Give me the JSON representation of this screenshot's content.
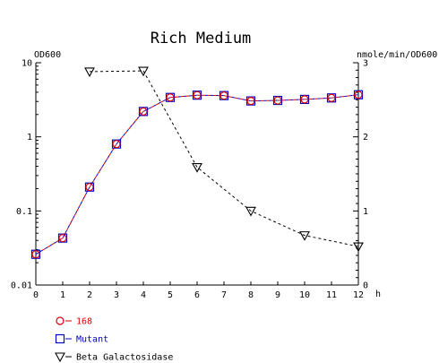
{
  "chart_data": {
    "type": "line",
    "title": "Rich Medium",
    "ylabel_left": "OD600",
    "ylabel_right": "nmole/min/OD600",
    "xlabel": "h",
    "x_ticks": [
      "0",
      "1",
      "2",
      "3",
      "4",
      "5",
      "6",
      "7",
      "8",
      "9",
      "10",
      "11",
      "12"
    ],
    "y_left_ticks": [
      "10",
      "1",
      "0.1",
      "0.01"
    ],
    "y_right_ticks": [
      "3",
      "2",
      "1",
      "0"
    ],
    "xlim": [
      0,
      12
    ],
    "ylim_left": [
      0.01,
      10
    ],
    "ylim_left_scale": "log",
    "ylim_right": [
      0,
      3
    ],
    "legend_position": "bottom-left",
    "series": [
      {
        "name": "168",
        "axis": "left",
        "marker": "circle",
        "color": "#dd0000",
        "line_color": "#dd0000",
        "x": [
          0,
          1,
          2,
          3,
          4,
          5,
          6,
          7,
          8,
          9,
          10,
          11,
          12
        ],
        "y": [
          0.026,
          0.043,
          0.21,
          0.8,
          2.2,
          3.4,
          3.65,
          3.6,
          3.05,
          3.1,
          3.2,
          3.35,
          3.7
        ]
      },
      {
        "name": "Mutant",
        "axis": "left",
        "marker": "square",
        "color": "#0000cc",
        "line_color": "#0000cc",
        "x": [
          0,
          1,
          2,
          3,
          4,
          5,
          6,
          7,
          8,
          9,
          10,
          11,
          12
        ],
        "y": [
          0.026,
          0.043,
          0.21,
          0.8,
          2.2,
          3.4,
          3.65,
          3.6,
          3.05,
          3.1,
          3.2,
          3.35,
          3.7
        ]
      },
      {
        "name": "Beta Galactosidase",
        "axis": "right",
        "marker": "triangle-down",
        "color": "#000000",
        "line_color": "#000000",
        "x": [
          2,
          4,
          6,
          8,
          10,
          12
        ],
        "y": [
          2.88,
          2.89,
          1.59,
          1.0,
          0.67,
          0.52
        ]
      }
    ]
  }
}
